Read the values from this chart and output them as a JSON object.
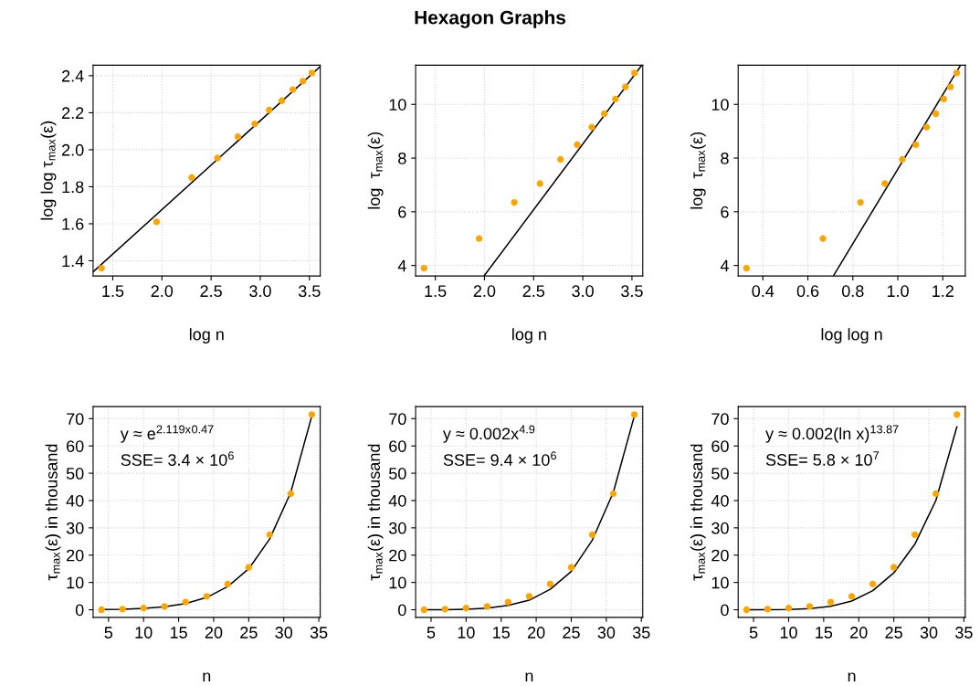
{
  "chart_data": [
    {
      "type": "scatter",
      "xlabel": "log n",
      "ylabel": "log log τ$_{max}$(ε)",
      "grid": true,
      "series": [
        {
          "marker": "circle",
          "color": "#ffa500",
          "x": [
            1.386,
            1.946,
            2.303,
            2.565,
            2.773,
            2.944,
            3.091,
            3.219,
            3.332,
            3.434,
            3.526
          ],
          "values": [
            1.36,
            1.61,
            1.85,
            1.955,
            2.07,
            2.14,
            2.215,
            2.265,
            2.325,
            2.37,
            2.415
          ]
        },
        {
          "type": "line",
          "marker": "none",
          "color": "#000000",
          "x": [
            1.3,
            3.61
          ],
          "values": [
            1.34,
            2.45
          ]
        }
      ],
      "xlim": [
        1.3,
        3.61
      ],
      "ylim": [
        1.318,
        2.457
      ],
      "xticks": [
        1.5,
        {
          "value": 2,
          "label": "2.0"
        },
        2.5,
        {
          "value": 3,
          "label": "3.0"
        },
        3.5
      ],
      "yticks": [
        1.4,
        1.6,
        1.8,
        {
          "value": 2,
          "label": "2.0"
        },
        2.2,
        2.4
      ]
    },
    {
      "type": "scatter",
      "title": "Hexagon Graphs",
      "xlabel": "log n",
      "ylabel": "log  τ$_{max}$(ε)",
      "grid": true,
      "series": [
        {
          "marker": "circle",
          "color": "#ffa500",
          "x": [
            1.386,
            1.946,
            2.303,
            2.565,
            2.773,
            2.944,
            3.091,
            3.219,
            3.332,
            3.434,
            3.526
          ],
          "values": [
            3.9,
            5.0,
            6.35,
            7.05,
            7.95,
            8.5,
            9.15,
            9.65,
            10.2,
            10.65,
            11.17
          ]
        },
        {
          "type": "line",
          "marker": "none",
          "color": "#000000",
          "x": [
            1.998,
            3.6
          ],
          "values": [
            3.62,
            11.46
          ]
        }
      ],
      "xlim": [
        1.3,
        3.61
      ],
      "ylim": [
        3.61,
        11.46
      ],
      "xticks": [
        1.5,
        {
          "value": 2,
          "label": "2.0"
        },
        2.5,
        {
          "value": 3,
          "label": "3.0"
        },
        3.5
      ],
      "yticks": [
        4,
        6,
        8,
        10
      ]
    },
    {
      "type": "scatter",
      "xlabel": "log log n",
      "ylabel": "log  τ$_{max}$(ε)",
      "grid": true,
      "series": [
        {
          "marker": "circle",
          "color": "#ffa500",
          "x": [
            0.327,
            0.667,
            0.834,
            0.942,
            1.02,
            1.08,
            1.128,
            1.169,
            1.204,
            1.234,
            1.262
          ],
          "values": [
            3.9,
            5.0,
            6.35,
            7.05,
            7.95,
            8.5,
            9.15,
            9.65,
            10.2,
            10.65,
            11.17
          ]
        },
        {
          "type": "line",
          "marker": "none",
          "color": "#000000",
          "x": [
            0.714,
            1.279
          ],
          "values": [
            3.62,
            11.46
          ]
        }
      ],
      "xlim": [
        0.29,
        1.3
      ],
      "ylim": [
        3.61,
        11.46
      ],
      "xticks": [
        0.4,
        0.6,
        0.8,
        {
          "value": 1,
          "label": "1.0"
        },
        1.2
      ],
      "yticks": [
        4,
        6,
        8,
        10
      ]
    },
    {
      "type": "scatter",
      "xlabel": "n",
      "ylabel": "τ$_{max}$(ε) in thousand",
      "grid": true,
      "annotations": [
        "y ≈ e$^{2.119x}$$^{0.47}$",
        "SSE= 3.4 × 10$^{6}$"
      ],
      "series": [
        {
          "marker": "circle",
          "color": "#ffa500",
          "x": [
            4,
            7,
            10,
            13,
            16,
            19,
            22,
            25,
            28,
            31,
            34
          ],
          "values": [
            0,
            0.2,
            0.6,
            1.2,
            2.8,
            4.9,
            9.4,
            15.5,
            27.5,
            42.5,
            71.5
          ]
        },
        {
          "type": "line",
          "marker": "none",
          "color": "#000000",
          "x": [
            4,
            7,
            10,
            13,
            16,
            19,
            22,
            25,
            28,
            31,
            34
          ],
          "values": [
            0.1,
            0.2,
            0.5,
            1.1,
            2.3,
            4.5,
            8.5,
            15,
            26,
            43,
            71
          ]
        }
      ],
      "xlim": [
        2.8,
        35.2
      ],
      "ylim": [
        -2.8,
        74.4
      ],
      "xticks": [
        5,
        10,
        15,
        20,
        25,
        30,
        35
      ],
      "yticks": [
        0,
        10,
        20,
        30,
        40,
        50,
        60,
        70
      ]
    },
    {
      "type": "scatter",
      "xlabel": "n",
      "ylabel": "τ$_{max}$(ε) in thousand",
      "grid": true,
      "annotations": [
        "y ≈ 0.002x$^{4.9}$",
        "SSE= 9.4 × 10$^{6}$"
      ],
      "series": [
        {
          "marker": "circle",
          "color": "#ffa500",
          "x": [
            4,
            7,
            10,
            13,
            16,
            19,
            22,
            25,
            28,
            31,
            34
          ],
          "values": [
            0,
            0.2,
            0.6,
            1.2,
            2.8,
            4.9,
            9.4,
            15.5,
            27.5,
            42.5,
            71.5
          ]
        },
        {
          "type": "line",
          "marker": "none",
          "color": "#000000",
          "x": [
            4,
            7,
            10,
            13,
            16,
            19,
            22,
            25,
            28,
            31,
            34
          ],
          "values": [
            0,
            0,
            0.2,
            0.6,
            1.6,
            3.5,
            7.5,
            14,
            25.5,
            43,
            71
          ]
        }
      ],
      "xlim": [
        2.8,
        35.2
      ],
      "ylim": [
        -2.8,
        74.4
      ],
      "xticks": [
        5,
        10,
        15,
        20,
        25,
        30,
        35
      ],
      "yticks": [
        0,
        10,
        20,
        30,
        40,
        50,
        60,
        70
      ]
    },
    {
      "type": "scatter",
      "xlabel": "n",
      "ylabel": "τ$_{max}$(ε) in thousand",
      "grid": true,
      "annotations": [
        "y ≈ 0.002(ln x)$^{13.87}$",
        "SSE= 5.8 × 10$^{7}$"
      ],
      "series": [
        {
          "marker": "circle",
          "color": "#ffa500",
          "x": [
            4,
            7,
            10,
            13,
            16,
            19,
            22,
            25,
            28,
            31,
            34
          ],
          "values": [
            0,
            0.2,
            0.6,
            1.2,
            2.8,
            4.9,
            9.4,
            15.5,
            27.5,
            42.5,
            71.5
          ]
        },
        {
          "type": "line",
          "marker": "none",
          "color": "#000000",
          "x": [
            4,
            7,
            10,
            13,
            16,
            19,
            22,
            25,
            28,
            31,
            34
          ],
          "values": [
            0,
            0,
            0.1,
            0.4,
            1.3,
            3.2,
            7,
            13.5,
            24,
            40,
            67
          ]
        }
      ],
      "xlim": [
        2.8,
        35.2
      ],
      "ylim": [
        -2.8,
        74.4
      ],
      "xticks": [
        5,
        10,
        15,
        20,
        25,
        30,
        35
      ],
      "yticks": [
        0,
        10,
        20,
        30,
        40,
        50,
        60,
        70
      ]
    }
  ]
}
